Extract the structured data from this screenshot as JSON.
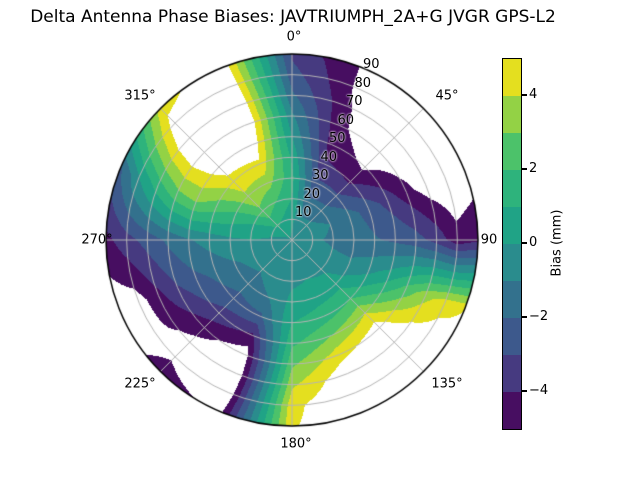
{
  "title": "Delta Antenna Phase Biases: JAVTRIUMPH_2A+G JVGR GPS-L2",
  "polar": {
    "theta_labels": [
      {
        "text": "0°",
        "deg": 0
      },
      {
        "text": "45°",
        "deg": 45
      },
      {
        "text": "90",
        "deg": 90
      },
      {
        "text": "135°",
        "deg": 135
      },
      {
        "text": "180°",
        "deg": 180
      },
      {
        "text": "225°",
        "deg": 225
      },
      {
        "text": "270°",
        "deg": 270
      },
      {
        "text": "315°",
        "deg": 315
      }
    ],
    "r_labels": [
      "10",
      "20",
      "30",
      "40",
      "50",
      "60",
      "70",
      "80",
      "90"
    ],
    "r_label_angle_deg": 22.5,
    "r_max": 90,
    "grid_color": "#b5b5b5",
    "spine_color": "#000000"
  },
  "colorbar": {
    "label": "Bias (mm)",
    "ticks": [
      {
        "text": "4",
        "value": 4
      },
      {
        "text": "2",
        "value": 2
      },
      {
        "text": "0",
        "value": 0
      },
      {
        "text": "−2",
        "value": -2
      },
      {
        "text": "−4",
        "value": -4
      }
    ],
    "range": [
      -5,
      5
    ],
    "border_color": "#000000"
  },
  "chart_data": {
    "type": "heatmap",
    "projection": "polar",
    "title": "Delta Antenna Phase Biases: JAVTRIUMPH_2A+G JVGR GPS-L2",
    "value_label": "Bias (mm)",
    "value_range": [
      -5,
      5
    ],
    "contour_levels": [
      -5,
      -4,
      -3,
      -2,
      -1,
      0,
      1,
      2,
      3,
      4,
      5
    ],
    "band_colors": [
      "#470e61",
      "#463a80",
      "#3d598c",
      "#33718d",
      "#2a8c8d",
      "#20a386",
      "#2eb37c",
      "#4cc26a",
      "#93d245",
      "#e4df1f"
    ],
    "out_of_range_color": "#ffffff",
    "angular_axis": {
      "zero": "top",
      "direction": "clockwise",
      "tick_labels_deg": [
        0,
        45,
        90,
        135,
        180,
        225,
        270,
        315
      ]
    },
    "radial_axis": {
      "range": [
        0,
        90
      ],
      "ticks": [
        10,
        20,
        30,
        40,
        50,
        60,
        70,
        80,
        90
      ]
    },
    "azimuth_deg": [
      0,
      22.5,
      45,
      67.5,
      90,
      112.5,
      135,
      157.5,
      180,
      202.5,
      225,
      247.5,
      270,
      292.5,
      315,
      337.5,
      360
    ],
    "zenith_deg": [
      0,
      10,
      20,
      30,
      40,
      50,
      60,
      70,
      80,
      90
    ],
    "values": [
      [
        -0.2,
        0.3,
        1.0,
        1.3,
        0.8,
        0.0,
        -0.8,
        -1.8,
        -2.6,
        -3.2
      ],
      [
        -0.2,
        -0.8,
        -1.8,
        -2.8,
        -3.8,
        -4.5,
        -4.8,
        -4.9,
        -5.1,
        -5.1
      ],
      [
        -0.2,
        -0.8,
        -1.6,
        -2.8,
        -4.2,
        -5.2,
        -5.8,
        -6.0,
        -5.8,
        -5.4
      ],
      [
        -0.2,
        -0.6,
        -1.0,
        -1.6,
        -2.4,
        -3.4,
        -4.6,
        -5.6,
        -6.0,
        -5.6
      ],
      [
        -0.2,
        -0.8,
        -1.2,
        -1.6,
        -1.9,
        -2.2,
        -2.6,
        -3.4,
        -4.6,
        -4.2
      ],
      [
        -0.2,
        -0.5,
        -0.8,
        -0.8,
        -0.2,
        0.8,
        2.2,
        3.6,
        4.6,
        5.0
      ],
      [
        -0.2,
        -0.4,
        -0.2,
        0.6,
        2.0,
        4.0,
        5.6,
        6.2,
        6.2,
        5.8
      ],
      [
        -0.2,
        -0.3,
        0.0,
        0.6,
        1.5,
        3.0,
        4.6,
        5.8,
        6.2,
        6.0
      ],
      [
        -0.2,
        -0.4,
        -0.2,
        0.3,
        1.0,
        1.8,
        2.8,
        3.8,
        4.7,
        4.9
      ],
      [
        -0.2,
        -0.4,
        -0.6,
        -1.0,
        -2.2,
        -4.2,
        -5.6,
        -6.0,
        -5.8,
        -5.2
      ],
      [
        -0.2,
        -0.5,
        -0.9,
        -1.5,
        -2.4,
        -3.4,
        -4.6,
        -5.3,
        -5.1,
        -4.7
      ],
      [
        -0.2,
        -0.4,
        -0.7,
        -1.1,
        -1.7,
        -2.3,
        -3.1,
        -4.3,
        -5.5,
        -5.7
      ],
      [
        -0.2,
        -0.2,
        0.0,
        -0.2,
        -0.6,
        -1.1,
        -1.8,
        -2.6,
        -3.4,
        -4.3
      ],
      [
        -0.2,
        0.4,
        1.0,
        1.6,
        2.4,
        3.2,
        2.8,
        1.6,
        0.0,
        -2.2
      ],
      [
        -0.2,
        1.2,
        2.8,
        3.8,
        4.6,
        5.6,
        6.4,
        6.4,
        5.6,
        4.4
      ],
      [
        -0.2,
        0.8,
        2.0,
        3.4,
        4.8,
        5.8,
        6.6,
        6.6,
        6.3,
        6.0
      ],
      [
        -0.2,
        0.3,
        1.0,
        1.3,
        0.8,
        0.0,
        -0.8,
        -1.8,
        -2.6,
        -3.2
      ]
    ]
  }
}
